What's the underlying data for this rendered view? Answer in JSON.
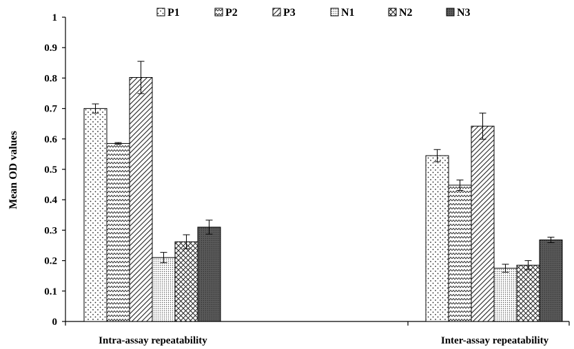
{
  "chart_data": {
    "type": "bar",
    "title": "",
    "xlabel": "",
    "ylabel": "Mean OD values",
    "ylim": [
      0,
      1
    ],
    "yticks": [
      "0",
      "0.1",
      "0.2",
      "0.3",
      "0.4",
      "0.5",
      "0.6",
      "0.7",
      "0.8",
      "0.9",
      "1"
    ],
    "categories": [
      "Intra-assay repeatability",
      "Inter-assay repeatability"
    ],
    "legend_position": "top",
    "grid": false,
    "series": [
      {
        "name": "P1",
        "pattern": "dots",
        "values": [
          0.7,
          0.545
        ],
        "errors": [
          0.015,
          0.02
        ]
      },
      {
        "name": "P2",
        "pattern": "zigzag",
        "values": [
          0.585,
          0.448
        ],
        "errors": [
          0.003,
          0.017
        ]
      },
      {
        "name": "P3",
        "pattern": "diagonal",
        "values": [
          0.802,
          0.642
        ],
        "errors": [
          0.053,
          0.043
        ]
      },
      {
        "name": "N1",
        "pattern": "fine-dots",
        "values": [
          0.21,
          0.175
        ],
        "errors": [
          0.017,
          0.013
        ]
      },
      {
        "name": "N2",
        "pattern": "crosshatch",
        "values": [
          0.262,
          0.185
        ],
        "errors": [
          0.023,
          0.015
        ]
      },
      {
        "name": "N3",
        "pattern": "dark-dense",
        "values": [
          0.31,
          0.268
        ],
        "errors": [
          0.023,
          0.009
        ]
      }
    ]
  }
}
